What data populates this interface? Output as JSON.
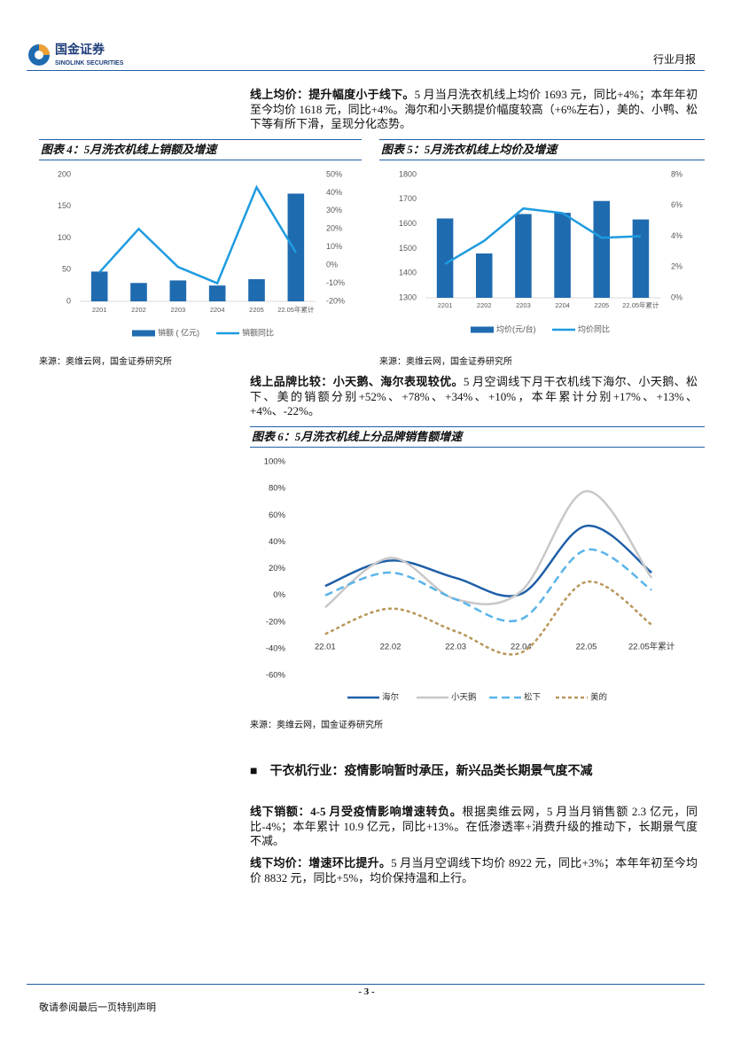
{
  "header": {
    "logo_cn": "国金证券",
    "logo_en": "SINOLINK SECURITIES",
    "report_type": "行业月报"
  },
  "paragraphs": [
    {
      "lead": "线上均价：提升幅度小于线下。",
      "text": "5 月当月洗衣机线上均价 1693 元，同比+4%；本年年初至今均价 1618 元，同比+4%。海尔和小天鹅提价幅度较高（+6%左右），美的、小鸭、松下等有所下滑，呈现分化态势。"
    },
    {
      "lead": "线上品牌比较：小天鹅、海尔表现较优。",
      "text": "5 月空调线下月干衣机线下海尔、小天鹅、松下、美的销额分别+52%、+78%、+34%、+10%，本年累计分别+17%、+13%、+4%、-22%。"
    },
    {
      "lead": "线下销额：4-5 月受疫情影响增速转负。",
      "text": "根据奥维云网，5 月当月销售额 2.3 亿元，同比-4%；本年累计 10.9 亿元，同比+13%。在低渗透率+消费升级的推动下，长期景气度不减。"
    },
    {
      "lead": "线下均价：增速环比提升。",
      "text": "5 月当月空调线下均价 8922 元，同比+3%；本年年初至今均价 8832 元，同比+5%，均价保持温和上行。"
    }
  ],
  "section_heading": "干衣机行业：疫情影响暂时承压，新兴品类长期景气度不减",
  "chart_data": [
    {
      "type": "combo",
      "title": "图表 4：5月洗衣机线上销额及增速",
      "source": "来源：奥维云网，国金证券研究所",
      "categories": [
        "2201",
        "2202",
        "2203",
        "2204",
        "2205",
        "22.05年累计"
      ],
      "series": [
        {
          "name": "销额 ( 亿元)",
          "color": "#1f6bb0",
          "kind": "bar",
          "values": [
            47,
            29,
            33,
            25,
            35,
            170
          ]
        },
        {
          "name": "销额同比",
          "color": "#1e9be0",
          "kind": "line",
          "axis": "y2",
          "values": [
            -4,
            20,
            -1,
            -10,
            43,
            7
          ]
        }
      ],
      "ylim": [
        0,
        200
      ],
      "yticks": [
        0,
        50,
        100,
        150,
        200
      ],
      "y2lim": [
        -20,
        50
      ],
      "y2ticks": [
        {
          "value": -20,
          "label": "-20%"
        },
        {
          "value": -10,
          "label": "-10%"
        },
        {
          "value": 0,
          "label": "0%"
        },
        {
          "value": 10,
          "label": "10%"
        },
        {
          "value": 20,
          "label": "20%"
        },
        {
          "value": 30,
          "label": "30%"
        },
        {
          "value": 40,
          "label": "40%"
        },
        {
          "value": 50,
          "label": "50%"
        }
      ],
      "grid": false
    },
    {
      "type": "combo",
      "title": "图表 5：5月洗衣机线上均价及增速",
      "source": "来源：奥维云网，国金证券研究所",
      "categories": [
        "2201",
        "2202",
        "2203",
        "2204",
        "2205",
        "22.05年累计"
      ],
      "series": [
        {
          "name": "均价(元/台)",
          "color": "#1f6bb0",
          "kind": "bar",
          "values": [
            1622,
            1480,
            1640,
            1645,
            1693,
            1618
          ]
        },
        {
          "name": "均价同比",
          "color": "#1e9be0",
          "kind": "line",
          "axis": "y2",
          "values": [
            2.2,
            3.7,
            5.8,
            5.5,
            3.9,
            4.0
          ]
        }
      ],
      "ylim": [
        1300,
        1800
      ],
      "yticks": [
        1300,
        1400,
        1500,
        1600,
        1700,
        1800
      ],
      "y2lim": [
        0,
        8
      ],
      "y2ticks": [
        {
          "value": 0,
          "label": "0%"
        },
        {
          "value": 2,
          "label": "2%"
        },
        {
          "value": 4,
          "label": "4%"
        },
        {
          "value": 6,
          "label": "6%"
        },
        {
          "value": 8,
          "label": "8%"
        }
      ],
      "grid": false
    },
    {
      "type": "line",
      "title": "图表 6：5月洗衣机线上分品牌销售额增速",
      "source": "来源：奥维云网，国金证券研究所",
      "categories": [
        "22.01",
        "22.02",
        "22.03",
        "22.04",
        "22.05",
        "22.05年累计"
      ],
      "series": [
        {
          "name": "海尔",
          "color": "#1f5fa8",
          "style": "solid",
          "values": [
            7,
            26,
            13,
            1,
            52,
            17
          ]
        },
        {
          "name": "小天鹅",
          "color": "#c8c8c8",
          "style": "solid",
          "values": [
            -9,
            28,
            -3,
            3,
            78,
            13
          ]
        },
        {
          "name": "松下",
          "color": "#5ab4ea",
          "style": "dashed",
          "values": [
            0,
            17,
            -3,
            -18,
            34,
            4
          ]
        },
        {
          "name": "美的",
          "color": "#b8975a",
          "style": "dotted",
          "values": [
            -29,
            -10,
            -27,
            -43,
            10,
            -22
          ]
        }
      ],
      "ylim": [
        -60,
        100
      ],
      "yticks": [
        {
          "value": -60,
          "label": "-60%"
        },
        {
          "value": -40,
          "label": "-40%"
        },
        {
          "value": -20,
          "label": "-20%"
        },
        {
          "value": 0,
          "label": "0%"
        },
        {
          "value": 20,
          "label": "20%"
        },
        {
          "value": 40,
          "label": "40%"
        },
        {
          "value": 60,
          "label": "60%"
        },
        {
          "value": 80,
          "label": "80%"
        },
        {
          "value": 100,
          "label": "100%"
        }
      ],
      "smooth": true,
      "grid": false
    }
  ],
  "footer": {
    "page_number": "- 3 -",
    "disclaimer": "敬请参阅最后一页特别声明"
  }
}
